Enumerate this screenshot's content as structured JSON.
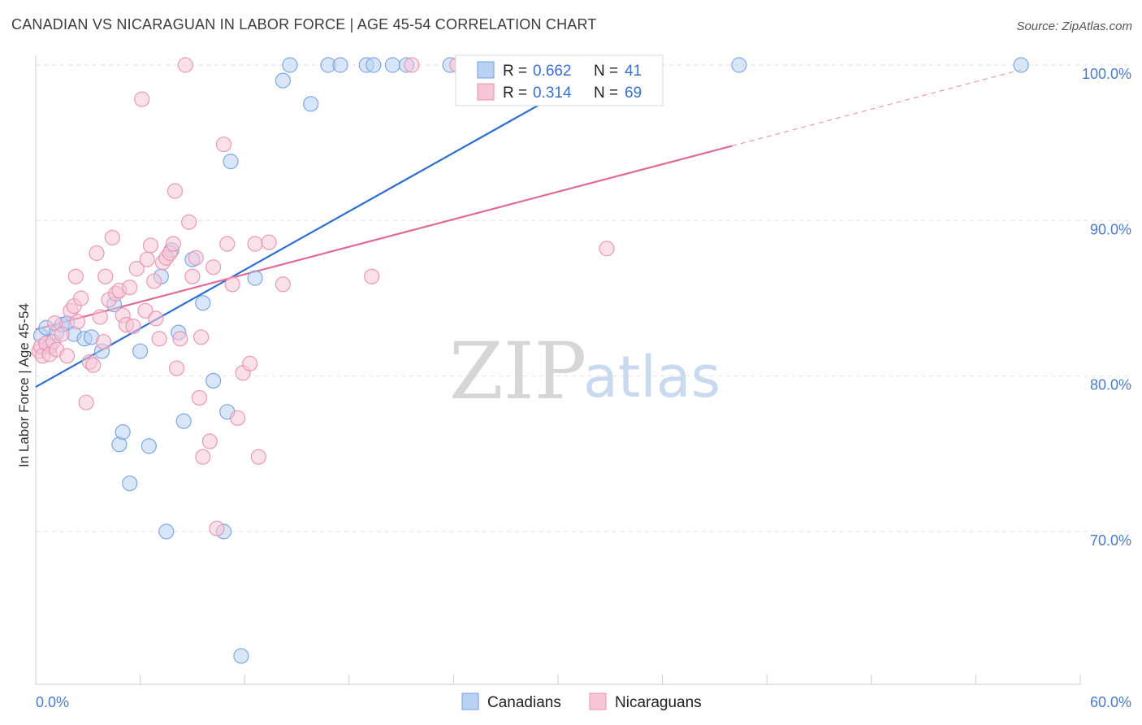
{
  "chart_data": {
    "type": "scatter",
    "title": "CANADIAN VS NICARAGUAN IN LABOR FORCE | AGE 45-54 CORRELATION CHART",
    "source": "Source: ZipAtlas.com",
    "xlabel": "",
    "ylabel": "In Labor Force | Age 45-54",
    "xlim": [
      0,
      60
    ],
    "ylim": [
      60,
      101
    ],
    "x_tick_labels": [
      "0.0%",
      "60.0%"
    ],
    "y_ticks": [
      70,
      80,
      90,
      100
    ],
    "y_tick_labels": [
      "70.0%",
      "80.0%",
      "90.0%",
      "100.0%"
    ],
    "watermark": {
      "zip": "ZIP",
      "atlas": "atlas"
    },
    "legend": {
      "r_label": "R =",
      "n_label": "N =",
      "entries": [
        {
          "r": "0.662",
          "n": "41"
        },
        {
          "r": "0.314",
          "n": "69"
        }
      ]
    },
    "series": [
      {
        "name": "Canadians",
        "color": "#6fa0e0",
        "fill": "#b9d2f3",
        "line_color": "#2d6fcf",
        "trend": {
          "x0": 0,
          "y0": 79.3,
          "x1": 33,
          "y1": 100,
          "dash_to_x": null
        },
        "points": [
          [
            0.3,
            82.6
          ],
          [
            0.6,
            83.1
          ],
          [
            0.8,
            81.9
          ],
          [
            1.2,
            82.8
          ],
          [
            1.5,
            83.3
          ],
          [
            1.8,
            83.4
          ],
          [
            2.2,
            82.7
          ],
          [
            2.8,
            82.4
          ],
          [
            3.2,
            82.5
          ],
          [
            3.8,
            81.6
          ],
          [
            4.5,
            84.6
          ],
          [
            4.8,
            75.6
          ],
          [
            5.0,
            76.4
          ],
          [
            5.4,
            73.1
          ],
          [
            6.0,
            81.6
          ],
          [
            6.5,
            75.5
          ],
          [
            7.2,
            86.4
          ],
          [
            7.5,
            70.0
          ],
          [
            7.8,
            88.1
          ],
          [
            8.2,
            82.8
          ],
          [
            8.5,
            77.1
          ],
          [
            9.0,
            87.5
          ],
          [
            9.6,
            84.7
          ],
          [
            10.2,
            79.7
          ],
          [
            10.8,
            70.0
          ],
          [
            11.0,
            77.7
          ],
          [
            11.2,
            93.8
          ],
          [
            11.8,
            62.0
          ],
          [
            12.6,
            86.3
          ],
          [
            14.2,
            99.0
          ],
          [
            14.6,
            100.0
          ],
          [
            15.8,
            97.5
          ],
          [
            16.8,
            100.0
          ],
          [
            17.5,
            100.0
          ],
          [
            19.0,
            100.0
          ],
          [
            19.4,
            100.0
          ],
          [
            20.5,
            100.0
          ],
          [
            21.3,
            100.0
          ],
          [
            23.8,
            100.0
          ],
          [
            40.4,
            100.0
          ],
          [
            56.6,
            100.0
          ]
        ]
      },
      {
        "name": "Nicaraguans",
        "color": "#e890b0",
        "fill": "#f6c6d6",
        "line_color": "#e06a98",
        "trend": {
          "x0": 0,
          "y0": 83.0,
          "x1": 40,
          "y1": 94.8,
          "dash_to_x": 56.6
        },
        "points": [
          [
            0.2,
            81.6
          ],
          [
            0.3,
            81.9
          ],
          [
            0.4,
            81.3
          ],
          [
            0.6,
            82.1
          ],
          [
            0.8,
            81.4
          ],
          [
            1.0,
            82.2
          ],
          [
            1.1,
            83.4
          ],
          [
            1.2,
            81.7
          ],
          [
            1.5,
            82.7
          ],
          [
            1.8,
            81.3
          ],
          [
            2.0,
            84.2
          ],
          [
            2.2,
            84.5
          ],
          [
            2.3,
            86.4
          ],
          [
            2.4,
            83.5
          ],
          [
            2.6,
            85.0
          ],
          [
            2.9,
            78.3
          ],
          [
            3.1,
            80.9
          ],
          [
            3.3,
            80.7
          ],
          [
            3.5,
            87.9
          ],
          [
            3.7,
            83.8
          ],
          [
            3.9,
            82.2
          ],
          [
            4.0,
            86.4
          ],
          [
            4.2,
            84.9
          ],
          [
            4.4,
            88.9
          ],
          [
            4.6,
            85.3
          ],
          [
            4.8,
            85.5
          ],
          [
            5.0,
            83.9
          ],
          [
            5.2,
            83.3
          ],
          [
            5.4,
            85.7
          ],
          [
            5.6,
            83.2
          ],
          [
            5.8,
            86.9
          ],
          [
            6.1,
            97.8
          ],
          [
            6.3,
            84.2
          ],
          [
            6.4,
            87.5
          ],
          [
            6.6,
            88.4
          ],
          [
            6.8,
            86.1
          ],
          [
            6.9,
            83.7
          ],
          [
            7.1,
            82.4
          ],
          [
            7.3,
            87.3
          ],
          [
            7.5,
            87.6
          ],
          [
            7.7,
            87.9
          ],
          [
            7.9,
            88.5
          ],
          [
            8.0,
            91.9
          ],
          [
            8.1,
            80.5
          ],
          [
            8.3,
            82.4
          ],
          [
            8.6,
            100.0
          ],
          [
            8.8,
            89.9
          ],
          [
            9.0,
            86.4
          ],
          [
            9.2,
            87.6
          ],
          [
            9.4,
            78.6
          ],
          [
            9.5,
            82.5
          ],
          [
            9.6,
            74.8
          ],
          [
            10.0,
            75.8
          ],
          [
            10.2,
            87.0
          ],
          [
            10.4,
            70.2
          ],
          [
            10.8,
            94.9
          ],
          [
            11.0,
            88.5
          ],
          [
            11.3,
            85.9
          ],
          [
            11.6,
            77.3
          ],
          [
            11.9,
            80.2
          ],
          [
            12.3,
            80.8
          ],
          [
            12.6,
            88.5
          ],
          [
            12.8,
            74.8
          ],
          [
            13.4,
            88.6
          ],
          [
            14.2,
            85.9
          ],
          [
            19.3,
            86.4
          ],
          [
            21.6,
            100.0
          ],
          [
            24.2,
            100.0
          ],
          [
            32.8,
            88.2
          ]
        ]
      }
    ]
  }
}
